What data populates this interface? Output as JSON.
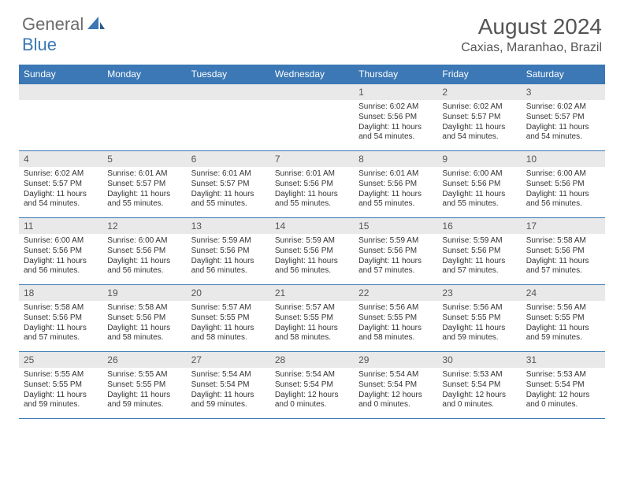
{
  "logo": {
    "text1": "General",
    "text2": "Blue",
    "color_general": "#6b6b6b",
    "color_blue": "#3b78b5"
  },
  "title": "August 2024",
  "location": "Caxias, Maranhao, Brazil",
  "header_bg": "#3b78b5",
  "header_text_color": "#ffffff",
  "daynum_bg": "#e9e9e9",
  "border_color": "#3b78b5",
  "weekdays": [
    "Sunday",
    "Monday",
    "Tuesday",
    "Wednesday",
    "Thursday",
    "Friday",
    "Saturday"
  ],
  "weeks": [
    [
      {
        "day": "",
        "sunrise": "",
        "sunset": "",
        "daylight": ""
      },
      {
        "day": "",
        "sunrise": "",
        "sunset": "",
        "daylight": ""
      },
      {
        "day": "",
        "sunrise": "",
        "sunset": "",
        "daylight": ""
      },
      {
        "day": "",
        "sunrise": "",
        "sunset": "",
        "daylight": ""
      },
      {
        "day": "1",
        "sunrise": "Sunrise: 6:02 AM",
        "sunset": "Sunset: 5:56 PM",
        "daylight": "Daylight: 11 hours and 54 minutes."
      },
      {
        "day": "2",
        "sunrise": "Sunrise: 6:02 AM",
        "sunset": "Sunset: 5:57 PM",
        "daylight": "Daylight: 11 hours and 54 minutes."
      },
      {
        "day": "3",
        "sunrise": "Sunrise: 6:02 AM",
        "sunset": "Sunset: 5:57 PM",
        "daylight": "Daylight: 11 hours and 54 minutes."
      }
    ],
    [
      {
        "day": "4",
        "sunrise": "Sunrise: 6:02 AM",
        "sunset": "Sunset: 5:57 PM",
        "daylight": "Daylight: 11 hours and 54 minutes."
      },
      {
        "day": "5",
        "sunrise": "Sunrise: 6:01 AM",
        "sunset": "Sunset: 5:57 PM",
        "daylight": "Daylight: 11 hours and 55 minutes."
      },
      {
        "day": "6",
        "sunrise": "Sunrise: 6:01 AM",
        "sunset": "Sunset: 5:57 PM",
        "daylight": "Daylight: 11 hours and 55 minutes."
      },
      {
        "day": "7",
        "sunrise": "Sunrise: 6:01 AM",
        "sunset": "Sunset: 5:56 PM",
        "daylight": "Daylight: 11 hours and 55 minutes."
      },
      {
        "day": "8",
        "sunrise": "Sunrise: 6:01 AM",
        "sunset": "Sunset: 5:56 PM",
        "daylight": "Daylight: 11 hours and 55 minutes."
      },
      {
        "day": "9",
        "sunrise": "Sunrise: 6:00 AM",
        "sunset": "Sunset: 5:56 PM",
        "daylight": "Daylight: 11 hours and 55 minutes."
      },
      {
        "day": "10",
        "sunrise": "Sunrise: 6:00 AM",
        "sunset": "Sunset: 5:56 PM",
        "daylight": "Daylight: 11 hours and 56 minutes."
      }
    ],
    [
      {
        "day": "11",
        "sunrise": "Sunrise: 6:00 AM",
        "sunset": "Sunset: 5:56 PM",
        "daylight": "Daylight: 11 hours and 56 minutes."
      },
      {
        "day": "12",
        "sunrise": "Sunrise: 6:00 AM",
        "sunset": "Sunset: 5:56 PM",
        "daylight": "Daylight: 11 hours and 56 minutes."
      },
      {
        "day": "13",
        "sunrise": "Sunrise: 5:59 AM",
        "sunset": "Sunset: 5:56 PM",
        "daylight": "Daylight: 11 hours and 56 minutes."
      },
      {
        "day": "14",
        "sunrise": "Sunrise: 5:59 AM",
        "sunset": "Sunset: 5:56 PM",
        "daylight": "Daylight: 11 hours and 56 minutes."
      },
      {
        "day": "15",
        "sunrise": "Sunrise: 5:59 AM",
        "sunset": "Sunset: 5:56 PM",
        "daylight": "Daylight: 11 hours and 57 minutes."
      },
      {
        "day": "16",
        "sunrise": "Sunrise: 5:59 AM",
        "sunset": "Sunset: 5:56 PM",
        "daylight": "Daylight: 11 hours and 57 minutes."
      },
      {
        "day": "17",
        "sunrise": "Sunrise: 5:58 AM",
        "sunset": "Sunset: 5:56 PM",
        "daylight": "Daylight: 11 hours and 57 minutes."
      }
    ],
    [
      {
        "day": "18",
        "sunrise": "Sunrise: 5:58 AM",
        "sunset": "Sunset: 5:56 PM",
        "daylight": "Daylight: 11 hours and 57 minutes."
      },
      {
        "day": "19",
        "sunrise": "Sunrise: 5:58 AM",
        "sunset": "Sunset: 5:56 PM",
        "daylight": "Daylight: 11 hours and 58 minutes."
      },
      {
        "day": "20",
        "sunrise": "Sunrise: 5:57 AM",
        "sunset": "Sunset: 5:55 PM",
        "daylight": "Daylight: 11 hours and 58 minutes."
      },
      {
        "day": "21",
        "sunrise": "Sunrise: 5:57 AM",
        "sunset": "Sunset: 5:55 PM",
        "daylight": "Daylight: 11 hours and 58 minutes."
      },
      {
        "day": "22",
        "sunrise": "Sunrise: 5:56 AM",
        "sunset": "Sunset: 5:55 PM",
        "daylight": "Daylight: 11 hours and 58 minutes."
      },
      {
        "day": "23",
        "sunrise": "Sunrise: 5:56 AM",
        "sunset": "Sunset: 5:55 PM",
        "daylight": "Daylight: 11 hours and 59 minutes."
      },
      {
        "day": "24",
        "sunrise": "Sunrise: 5:56 AM",
        "sunset": "Sunset: 5:55 PM",
        "daylight": "Daylight: 11 hours and 59 minutes."
      }
    ],
    [
      {
        "day": "25",
        "sunrise": "Sunrise: 5:55 AM",
        "sunset": "Sunset: 5:55 PM",
        "daylight": "Daylight: 11 hours and 59 minutes."
      },
      {
        "day": "26",
        "sunrise": "Sunrise: 5:55 AM",
        "sunset": "Sunset: 5:55 PM",
        "daylight": "Daylight: 11 hours and 59 minutes."
      },
      {
        "day": "27",
        "sunrise": "Sunrise: 5:54 AM",
        "sunset": "Sunset: 5:54 PM",
        "daylight": "Daylight: 11 hours and 59 minutes."
      },
      {
        "day": "28",
        "sunrise": "Sunrise: 5:54 AM",
        "sunset": "Sunset: 5:54 PM",
        "daylight": "Daylight: 12 hours and 0 minutes."
      },
      {
        "day": "29",
        "sunrise": "Sunrise: 5:54 AM",
        "sunset": "Sunset: 5:54 PM",
        "daylight": "Daylight: 12 hours and 0 minutes."
      },
      {
        "day": "30",
        "sunrise": "Sunrise: 5:53 AM",
        "sunset": "Sunset: 5:54 PM",
        "daylight": "Daylight: 12 hours and 0 minutes."
      },
      {
        "day": "31",
        "sunrise": "Sunrise: 5:53 AM",
        "sunset": "Sunset: 5:54 PM",
        "daylight": "Daylight: 12 hours and 0 minutes."
      }
    ]
  ]
}
